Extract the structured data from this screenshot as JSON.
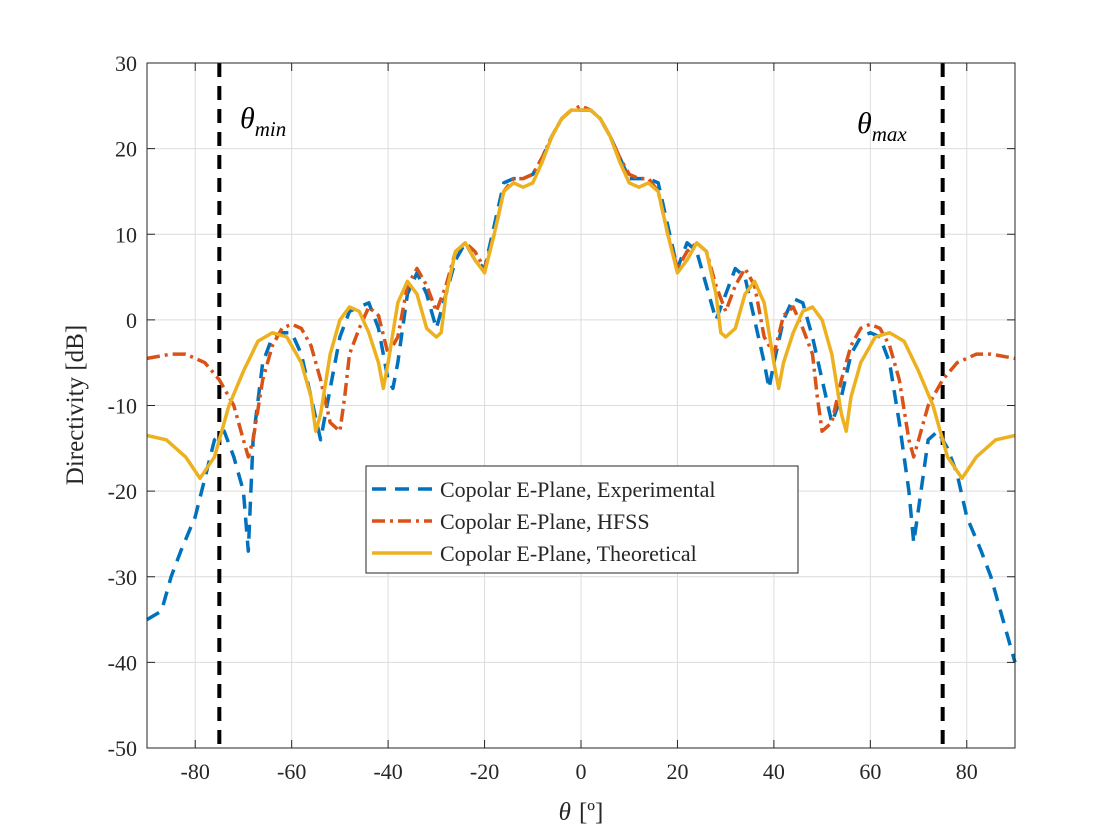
{
  "chart_data": {
    "type": "line",
    "title": "",
    "xlabel_symbol": "θ",
    "xlabel_unit": "[º]",
    "ylabel": "Directivity [dB]",
    "xlim": [
      -90,
      90
    ],
    "ylim": [
      -50,
      30
    ],
    "xticks": [
      -80,
      -60,
      -40,
      -20,
      0,
      20,
      40,
      60,
      80
    ],
    "yticks": [
      -50,
      -40,
      -30,
      -20,
      -10,
      0,
      10,
      20,
      30
    ],
    "grid": true,
    "legend_position": "center-bottom",
    "vlines": [
      {
        "x": -75,
        "label_base": "θ",
        "label_sub": "min",
        "color": "#000000",
        "style": "dashed"
      },
      {
        "x": 75,
        "label_base": "θ",
        "label_sub": "max",
        "color": "#000000",
        "style": "dashed"
      }
    ],
    "series": [
      {
        "name": "Copolar E-Plane, Experimental",
        "color": "#0072BD",
        "style": "dashed",
        "x": [
          -90,
          -87,
          -85,
          -83,
          -80,
          -78,
          -76,
          -74,
          -72,
          -70,
          -69,
          -68,
          -66,
          -64,
          -62,
          -60,
          -58,
          -56,
          -54,
          -52,
          -50,
          -48,
          -46,
          -44,
          -42,
          -40,
          -39,
          -38,
          -36,
          -34,
          -32,
          -30,
          -28,
          -26,
          -24,
          -22,
          -20,
          -18,
          -16,
          -14,
          -12,
          -10,
          -8,
          -6,
          -4,
          -2,
          0,
          2,
          4,
          6,
          8,
          10,
          12,
          14,
          16,
          18,
          20,
          22,
          24,
          26,
          28,
          30,
          32,
          34,
          36,
          38,
          39,
          40,
          42,
          44,
          46,
          48,
          50,
          52,
          54,
          56,
          58,
          60,
          62,
          64,
          66,
          68,
          69,
          70,
          72,
          74,
          76,
          78,
          80,
          83,
          85,
          87,
          90
        ],
        "y": [
          -35,
          -34,
          -30,
          -27,
          -23,
          -18.5,
          -14,
          -13,
          -16,
          -20,
          -27,
          -14,
          -5,
          -2,
          -1.5,
          -1.5,
          -4,
          -9,
          -14,
          -8,
          -2,
          1,
          1.5,
          2,
          -1,
          -7,
          -8,
          -5,
          3,
          5.5,
          3,
          -1,
          3,
          7,
          9,
          7,
          6,
          11,
          16,
          16.5,
          16.5,
          17,
          19,
          21.5,
          23.5,
          24.5,
          24.5,
          24.5,
          23.5,
          21.5,
          19,
          16.5,
          16.5,
          16.5,
          16,
          11,
          6,
          9,
          8,
          4,
          0,
          3,
          6,
          5,
          0,
          -5,
          -8,
          -5,
          0,
          2.5,
          2,
          -2,
          -7,
          -12,
          -9,
          -4,
          -2,
          -1.5,
          -2,
          -5,
          -12,
          -20,
          -26,
          -22,
          -14,
          -13,
          -15,
          -18,
          -23,
          -27,
          -30,
          -34,
          -40
        ]
      },
      {
        "name": "Copolar E-Plane, HFSS",
        "color": "#D95319",
        "style": "dashdot",
        "x": [
          -90,
          -85,
          -82,
          -78,
          -75,
          -72,
          -70,
          -69,
          -68,
          -66,
          -64,
          -62,
          -60,
          -58,
          -56,
          -54,
          -52,
          -50,
          -49,
          -48,
          -46,
          -44,
          -42,
          -40,
          -38,
          -36,
          -34,
          -32,
          -30,
          -28,
          -26,
          -24,
          -22,
          -20,
          -18,
          -16,
          -14,
          -12,
          -10,
          -8,
          -6,
          -4,
          -2,
          0,
          2,
          4,
          6,
          8,
          10,
          12,
          14,
          16,
          18,
          20,
          22,
          24,
          26,
          28,
          30,
          32,
          34,
          36,
          38,
          40,
          42,
          44,
          46,
          48,
          49,
          50,
          52,
          54,
          56,
          58,
          60,
          62,
          64,
          66,
          68,
          69,
          70,
          72,
          75,
          78,
          82,
          85,
          90
        ],
        "y": [
          -4.5,
          -4,
          -4,
          -5,
          -7,
          -10,
          -14,
          -16,
          -14,
          -7,
          -3,
          -1,
          -0.5,
          -1,
          -3,
          -7,
          -12,
          -13,
          -9,
          -4,
          -1,
          1.5,
          0.5,
          -4,
          -2,
          4,
          6,
          4,
          1,
          4,
          8,
          9,
          8,
          6,
          10,
          15,
          16.5,
          16.5,
          17,
          19,
          21.5,
          23.5,
          24.5,
          25,
          24.5,
          23.5,
          21.5,
          19,
          17,
          16.5,
          16.5,
          15,
          10,
          6,
          8,
          9,
          8,
          4,
          1,
          4,
          6,
          4,
          -2,
          -4,
          0.5,
          1.5,
          -1,
          -4,
          -9,
          -13,
          -12,
          -7,
          -3,
          -1,
          -0.5,
          -1,
          -3,
          -7,
          -14,
          -16,
          -14,
          -10,
          -7,
          -5,
          -4,
          -4,
          -4.5
        ]
      },
      {
        "name": "Copolar E-Plane, Theoretical",
        "color": "#EDB120",
        "style": "solid",
        "x": [
          -90,
          -86,
          -82,
          -79,
          -76,
          -73,
          -70,
          -67,
          -64,
          -61,
          -58,
          -56,
          -55,
          -54,
          -52,
          -50,
          -48,
          -46,
          -44,
          -42,
          -41,
          -40,
          -38,
          -36,
          -34,
          -32,
          -30,
          -29,
          -28,
          -26,
          -24,
          -22,
          -20,
          -18,
          -16,
          -14,
          -12,
          -10,
          -8,
          -6,
          -4,
          -2,
          0,
          2,
          4,
          6,
          8,
          10,
          12,
          14,
          16,
          18,
          20,
          22,
          24,
          26,
          28,
          29,
          30,
          32,
          34,
          36,
          38,
          40,
          41,
          42,
          44,
          46,
          48,
          50,
          52,
          54,
          55,
          56,
          58,
          61,
          64,
          67,
          70,
          73,
          76,
          79,
          82,
          86,
          90
        ],
        "y": [
          -13.5,
          -14,
          -16,
          -18.5,
          -16,
          -10,
          -6,
          -2.5,
          -1.5,
          -2,
          -5,
          -9,
          -13,
          -11,
          -4,
          0,
          1.5,
          1,
          -1.5,
          -5,
          -8,
          -5,
          2,
          4.5,
          3,
          -1,
          -2,
          -1.5,
          3,
          8,
          9,
          7,
          5.5,
          10,
          15,
          16,
          15.5,
          16,
          18.5,
          21.5,
          23.5,
          24.5,
          24.5,
          24.5,
          23.5,
          21.5,
          18.5,
          16,
          15.5,
          16,
          15,
          10,
          5.5,
          7,
          9,
          8,
          3,
          -1.5,
          -2,
          -1,
          3,
          4.5,
          2,
          -5,
          -8,
          -5,
          -1.5,
          1,
          1.5,
          0,
          -4,
          -11,
          -13,
          -9,
          -5,
          -2,
          -1.5,
          -2.5,
          -6,
          -10,
          -16,
          -18.5,
          -16,
          -14,
          -13.5
        ]
      }
    ]
  }
}
